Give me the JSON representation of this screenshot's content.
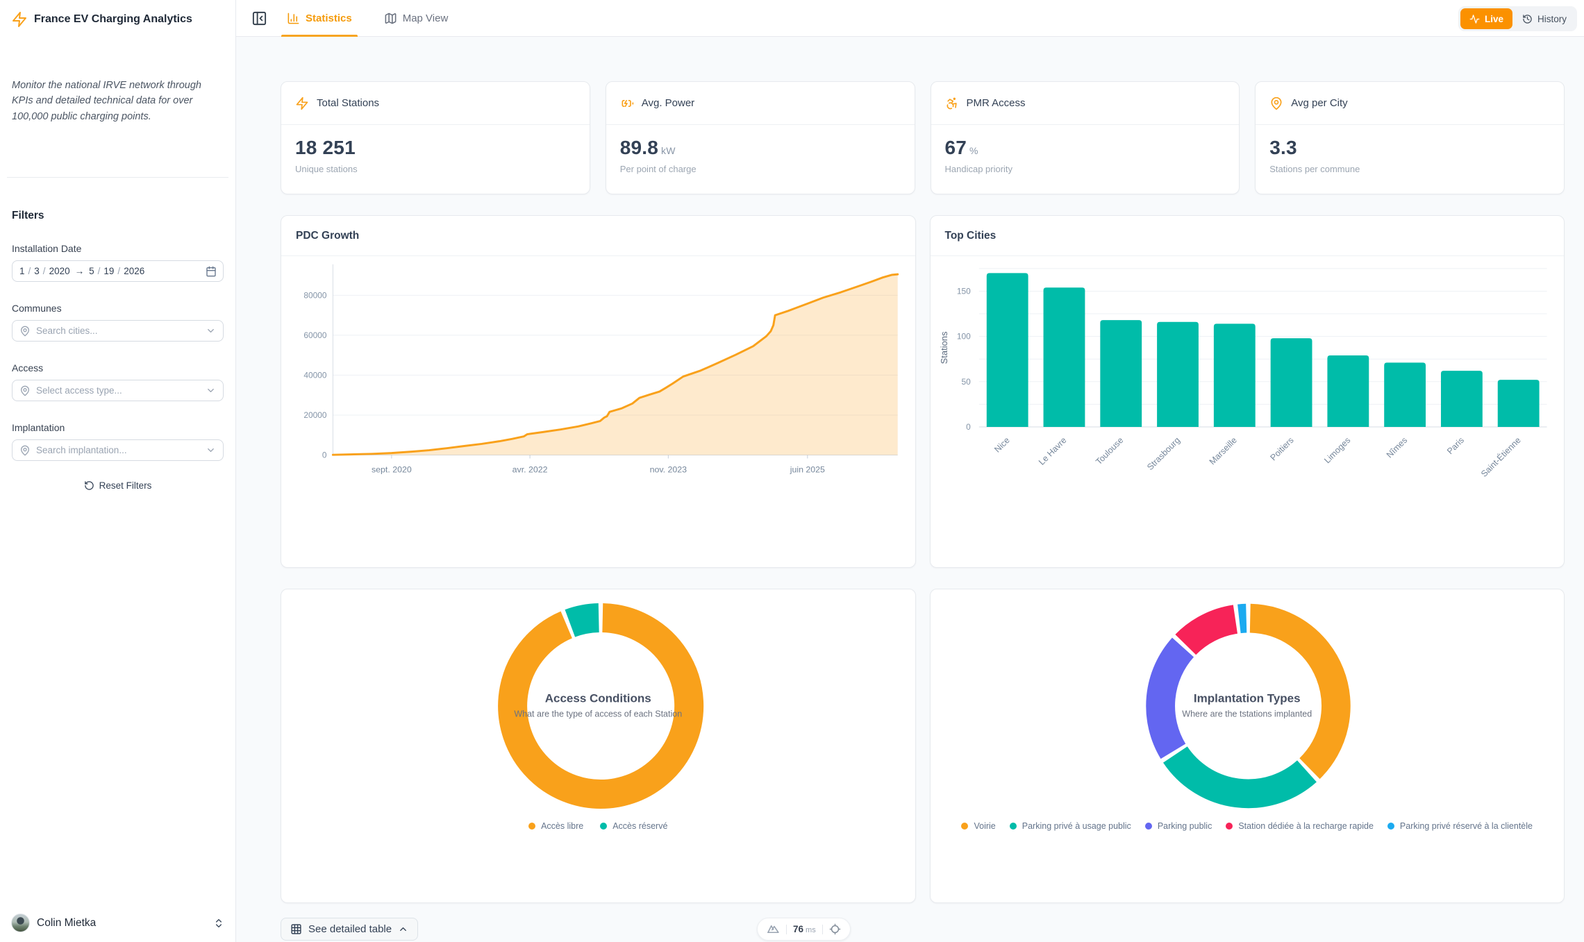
{
  "sidebar": {
    "title": "France EV Charging Analytics",
    "description": "Monitor the national IRVE network through KPIs and detailed technical data for over 100,000 public charging points.",
    "filters_heading": "Filters",
    "installation": {
      "label": "Installation Date",
      "sep": "/",
      "arrow": "→",
      "from_month": "1",
      "from_day": "3",
      "from_year": "2020",
      "to_month": "5",
      "to_day": "19",
      "to_year": "2026"
    },
    "communes": {
      "label": "Communes",
      "placeholder": "Search cities..."
    },
    "access": {
      "label": "Access",
      "placeholder": "Select access type..."
    },
    "implantation": {
      "label": "Implantation",
      "placeholder": "Search implantation..."
    },
    "reset_label": "Reset Filters",
    "user_name": "Colin Mietka"
  },
  "topbar": {
    "tab_statistics": "Statistics",
    "tab_map": "Map View",
    "live_label": "Live",
    "history_label": "History"
  },
  "kpis": [
    {
      "icon": "bolt-icon",
      "label": "Total Stations",
      "value": "18 251",
      "unit": "",
      "sub": "Unique stations"
    },
    {
      "icon": "battery-charging-icon",
      "label": "Avg. Power",
      "value": "89.8",
      "unit": "kW",
      "sub": "Per point of charge"
    },
    {
      "icon": "accessibility-icon",
      "label": "PMR Access",
      "value": "67",
      "unit": "%",
      "sub": "Handicap priority"
    },
    {
      "icon": "map-pin-icon",
      "label": "Avg per City",
      "value": "3.3",
      "unit": "",
      "sub": "Stations per commune"
    }
  ],
  "footer": {
    "table_button": "See detailed table",
    "latency_value": "76",
    "latency_unit": "ms"
  },
  "chart_data": [
    {
      "type": "area",
      "title": "PDC Growth",
      "xlabel": "",
      "ylabel": "",
      "x_domain": [
        2020.0,
        2026.45
      ],
      "xticks": [
        {
          "label": "sept. 2020",
          "t": 2020.67
        },
        {
          "label": "avr. 2022",
          "t": 2022.25
        },
        {
          "label": "nov. 2023",
          "t": 2023.83
        },
        {
          "label": "juin 2025",
          "t": 2025.42
        }
      ],
      "yticks": [
        0,
        20000,
        40000,
        60000,
        80000
      ],
      "ylim": [
        0,
        95500
      ],
      "line_color": "#F9A11B",
      "fill_color": "rgba(249,161,27,0.22)",
      "grid": true,
      "points": [
        [
          2020.0,
          100
        ],
        [
          2020.2,
          300
        ],
        [
          2020.45,
          600
        ],
        [
          2020.67,
          1000
        ],
        [
          2020.9,
          1700
        ],
        [
          2021.1,
          2400
        ],
        [
          2021.3,
          3400
        ],
        [
          2021.5,
          4500
        ],
        [
          2021.7,
          5600
        ],
        [
          2021.9,
          6900
        ],
        [
          2022.05,
          8100
        ],
        [
          2022.18,
          9300
        ],
        [
          2022.22,
          10400
        ],
        [
          2022.4,
          11500
        ],
        [
          2022.6,
          12800
        ],
        [
          2022.8,
          14300
        ],
        [
          2022.95,
          15900
        ],
        [
          2023.05,
          17000
        ],
        [
          2023.1,
          18800
        ],
        [
          2023.13,
          19400
        ],
        [
          2023.16,
          21600
        ],
        [
          2023.3,
          23400
        ],
        [
          2023.42,
          25800
        ],
        [
          2023.5,
          28600
        ],
        [
          2023.62,
          30300
        ],
        [
          2023.73,
          31800
        ],
        [
          2023.8,
          33600
        ],
        [
          2023.88,
          35800
        ],
        [
          2024.0,
          39300
        ],
        [
          2024.2,
          42300
        ],
        [
          2024.4,
          46200
        ],
        [
          2024.6,
          50200
        ],
        [
          2024.8,
          54500
        ],
        [
          2024.95,
          59500
        ],
        [
          2025.0,
          62000
        ],
        [
          2025.03,
          65000
        ],
        [
          2025.05,
          70000
        ],
        [
          2025.2,
          72200
        ],
        [
          2025.42,
          75800
        ],
        [
          2025.6,
          78800
        ],
        [
          2025.8,
          81500
        ],
        [
          2026.0,
          84500
        ],
        [
          2026.15,
          86800
        ],
        [
          2026.28,
          88900
        ],
        [
          2026.38,
          90200
        ],
        [
          2026.45,
          90500
        ]
      ]
    },
    {
      "type": "bar",
      "title": "Top Cities",
      "ylabel": "Stations",
      "categories": [
        "Nice",
        "Le Havre",
        "Toulouse",
        "Strasbourg",
        "Marseille",
        "Poitiers",
        "Limoges",
        "Nîmes",
        "Paris",
        "Saint-Étienne"
      ],
      "values": [
        170,
        154,
        118,
        116,
        114,
        98,
        79,
        71,
        62,
        52
      ],
      "yticks": [
        0,
        50,
        100,
        150
      ],
      "ylim": [
        0,
        175
      ],
      "grid": true,
      "bar_color": "#00BCA9"
    },
    {
      "type": "pie",
      "title": "Access Conditions",
      "subtitle": "What are the type of access of each Station",
      "slices": [
        {
          "label": "Accès libre",
          "value": 94,
          "color": "#F9A11B"
        },
        {
          "label": "Accès réservé",
          "value": 6,
          "color": "#00BCA9"
        }
      ],
      "legend_position": "bottom"
    },
    {
      "type": "pie",
      "title": "Implantation Types",
      "subtitle": "Where are the tstations implanted",
      "slices": [
        {
          "label": "Voirie",
          "value": 38,
          "color": "#F9A11B"
        },
        {
          "label": "Parking privé à usage public",
          "value": 28,
          "color": "#00BCA9"
        },
        {
          "label": "Parking public",
          "value": 21,
          "color": "#6366F1"
        },
        {
          "label": "Station dédiée à la recharge rapide",
          "value": 11,
          "color": "#F72358"
        },
        {
          "label": "Parking privé réservé à la clientèle",
          "value": 2,
          "color": "#1BAAF0"
        }
      ],
      "legend_position": "bottom"
    }
  ]
}
